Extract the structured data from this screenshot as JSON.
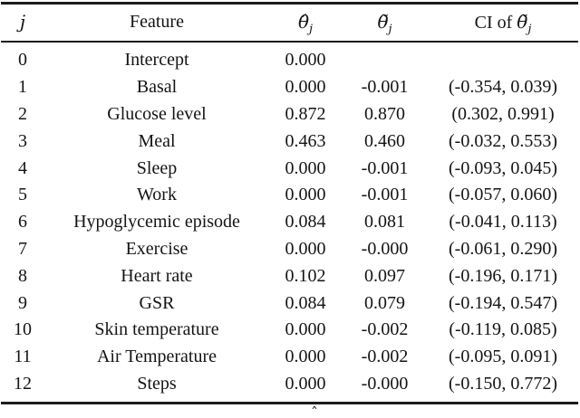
{
  "page": {
    "background": "#ffffff",
    "text_color": "#141414",
    "rule_color": "#1c1c1c"
  },
  "table": {
    "headers": [
      {
        "name": "j",
        "label": "j",
        "italic": true
      },
      {
        "name": "feature",
        "label": "Feature",
        "italic": false
      },
      {
        "name": "theta-hat",
        "base": "θ̂",
        "sub": "j"
      },
      {
        "name": "theta-tilde",
        "base": "θ̃",
        "sub": "j"
      },
      {
        "name": "ci",
        "prefix": "CI of ",
        "base": "θ̃",
        "sub": "j"
      }
    ],
    "rows": [
      {
        "j": "0",
        "feature": "Intercept",
        "theta_hat": "0.000",
        "theta_tilde": "",
        "ci": ""
      },
      {
        "j": "1",
        "feature": "Basal",
        "theta_hat": "0.000",
        "theta_tilde": "-0.001",
        "ci": "(-0.354, 0.039)"
      },
      {
        "j": "2",
        "feature": "Glucose level",
        "theta_hat": "0.872",
        "theta_tilde": "0.870",
        "ci": "(0.302, 0.991)"
      },
      {
        "j": "3",
        "feature": "Meal",
        "theta_hat": "0.463",
        "theta_tilde": "0.460",
        "ci": "(-0.032, 0.553)"
      },
      {
        "j": "4",
        "feature": "Sleep",
        "theta_hat": "0.000",
        "theta_tilde": "-0.001",
        "ci": "(-0.093, 0.045)"
      },
      {
        "j": "5",
        "feature": "Work",
        "theta_hat": "0.000",
        "theta_tilde": "-0.001",
        "ci": "(-0.057, 0.060)"
      },
      {
        "j": "6",
        "feature": "Hypoglycemic episode",
        "theta_hat": "0.084",
        "theta_tilde": "0.081",
        "ci": "(-0.041, 0.113)"
      },
      {
        "j": "7",
        "feature": "Exercise",
        "theta_hat": "0.000",
        "theta_tilde": "-0.000",
        "ci": "(-0.061, 0.290)"
      },
      {
        "j": "8",
        "feature": "Heart rate",
        "theta_hat": "0.102",
        "theta_tilde": "0.097",
        "ci": "(-0.196, 0.171)"
      },
      {
        "j": "9",
        "feature": "GSR",
        "theta_hat": "0.084",
        "theta_tilde": "0.079",
        "ci": "(-0.194, 0.547)"
      },
      {
        "j": "10",
        "feature": "Skin temperature",
        "theta_hat": "0.000",
        "theta_tilde": "-0.002",
        "ci": "(-0.119, 0.085)"
      },
      {
        "j": "11",
        "feature": "Air Temperature",
        "theta_hat": "0.000",
        "theta_tilde": "-0.002",
        "ci": "(-0.095, 0.091)"
      },
      {
        "j": "12",
        "feature": "Steps",
        "theta_hat": "0.000",
        "theta_tilde": "-0.000",
        "ci": "(-0.150, 0.772)"
      }
    ]
  },
  "caption_fragment": "ˆ"
}
